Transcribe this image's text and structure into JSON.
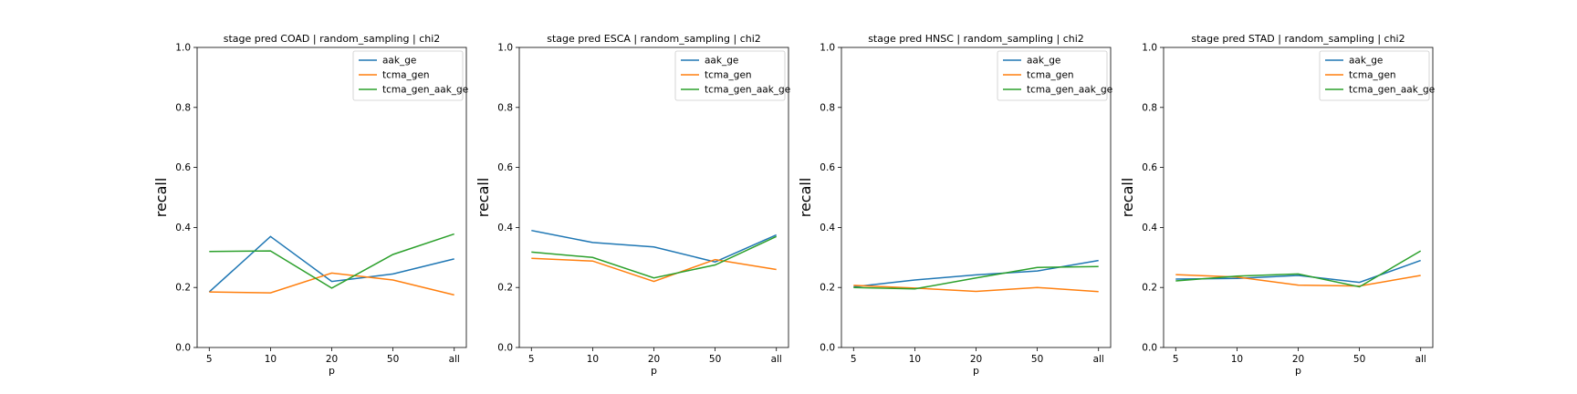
{
  "chart_data": [
    {
      "type": "line",
      "title": "stage pred COAD | random_sampling | chi2",
      "xlabel": "p",
      "ylabel": "recall",
      "categories": [
        "5",
        "10",
        "20",
        "50",
        "all"
      ],
      "ylim": [
        0.0,
        1.0
      ],
      "yticks": [
        "0.0",
        "0.2",
        "0.4",
        "0.6",
        "0.8",
        "1.0"
      ],
      "legend_position": "top-right",
      "series": [
        {
          "name": "aak_ge",
          "color": "#1f77b4",
          "values": [
            0.185,
            0.37,
            0.22,
            0.245,
            0.295
          ]
        },
        {
          "name": "tcma_gen",
          "color": "#ff7f0e",
          "values": [
            0.185,
            0.182,
            0.248,
            0.225,
            0.175
          ]
        },
        {
          "name": "tcma_gen_aak_ge",
          "color": "#2ca02c",
          "values": [
            0.32,
            0.322,
            0.198,
            0.31,
            0.378
          ]
        }
      ]
    },
    {
      "type": "line",
      "title": "stage pred ESCA | random_sampling | chi2",
      "xlabel": "p",
      "ylabel": "recall",
      "categories": [
        "5",
        "10",
        "20",
        "50",
        "all"
      ],
      "ylim": [
        0.0,
        1.0
      ],
      "yticks": [
        "0.0",
        "0.2",
        "0.4",
        "0.6",
        "0.8",
        "1.0"
      ],
      "legend_position": "top-right",
      "series": [
        {
          "name": "aak_ge",
          "color": "#1f77b4",
          "values": [
            0.39,
            0.35,
            0.335,
            0.285,
            0.375
          ]
        },
        {
          "name": "tcma_gen",
          "color": "#ff7f0e",
          "values": [
            0.297,
            0.288,
            0.22,
            0.293,
            0.26
          ]
        },
        {
          "name": "tcma_gen_aak_ge",
          "color": "#2ca02c",
          "values": [
            0.318,
            0.3,
            0.232,
            0.275,
            0.37
          ]
        }
      ]
    },
    {
      "type": "line",
      "title": "stage pred HNSC | random_sampling | chi2",
      "xlabel": "p",
      "ylabel": "recall",
      "categories": [
        "5",
        "10",
        "20",
        "50",
        "all"
      ],
      "ylim": [
        0.0,
        1.0
      ],
      "yticks": [
        "0.0",
        "0.2",
        "0.4",
        "0.6",
        "0.8",
        "1.0"
      ],
      "legend_position": "top-right",
      "series": [
        {
          "name": "aak_ge",
          "color": "#1f77b4",
          "values": [
            0.202,
            0.225,
            0.242,
            0.255,
            0.29
          ]
        },
        {
          "name": "tcma_gen",
          "color": "#ff7f0e",
          "values": [
            0.207,
            0.198,
            0.187,
            0.2,
            0.186
          ]
        },
        {
          "name": "tcma_gen_aak_ge",
          "color": "#2ca02c",
          "values": [
            0.2,
            0.195,
            0.232,
            0.267,
            0.27
          ]
        }
      ]
    },
    {
      "type": "line",
      "title": "stage pred STAD | random_sampling | chi2",
      "xlabel": "p",
      "ylabel": "recall",
      "categories": [
        "5",
        "10",
        "20",
        "50",
        "all"
      ],
      "ylim": [
        0.0,
        1.0
      ],
      "yticks": [
        "0.0",
        "0.2",
        "0.4",
        "0.6",
        "0.8",
        "1.0"
      ],
      "legend_position": "top-right",
      "series": [
        {
          "name": "aak_ge",
          "color": "#1f77b4",
          "values": [
            0.228,
            0.23,
            0.24,
            0.217,
            0.29
          ]
        },
        {
          "name": "tcma_gen",
          "color": "#ff7f0e",
          "values": [
            0.243,
            0.235,
            0.208,
            0.205,
            0.24
          ]
        },
        {
          "name": "tcma_gen_aak_ge",
          "color": "#2ca02c",
          "values": [
            0.222,
            0.238,
            0.245,
            0.202,
            0.322
          ]
        }
      ]
    }
  ]
}
